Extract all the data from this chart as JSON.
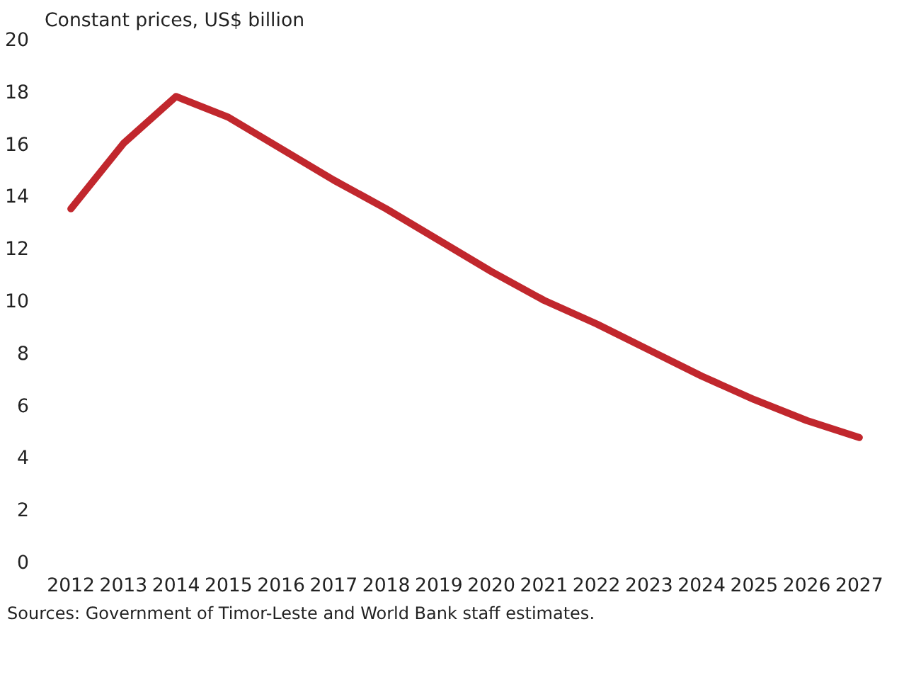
{
  "chart_data": {
    "type": "line",
    "ylabel": "Constant prices, US$ billion",
    "categories": [
      "2012",
      "2013",
      "2014",
      "2015",
      "2016",
      "2017",
      "2018",
      "2019",
      "2020",
      "2021",
      "2022",
      "2023",
      "2024",
      "2025",
      "2026",
      "2027"
    ],
    "series": [
      {
        "color": "#c1272d",
        "values": [
          13.5,
          16.0,
          17.8,
          17.0,
          15.8,
          14.6,
          13.5,
          12.3,
          11.1,
          10.0,
          9.1,
          8.1,
          7.1,
          6.2,
          5.4,
          4.75
        ]
      }
    ],
    "ylim": [
      0,
      20
    ],
    "yticks": [
      0,
      2,
      4,
      6,
      8,
      10,
      12,
      14,
      16,
      18,
      20
    ],
    "grid": false,
    "marker": "none",
    "line_style": "solid",
    "annotations": [
      "Sources: Government of Timor-Leste and World Bank staff estimates."
    ]
  }
}
